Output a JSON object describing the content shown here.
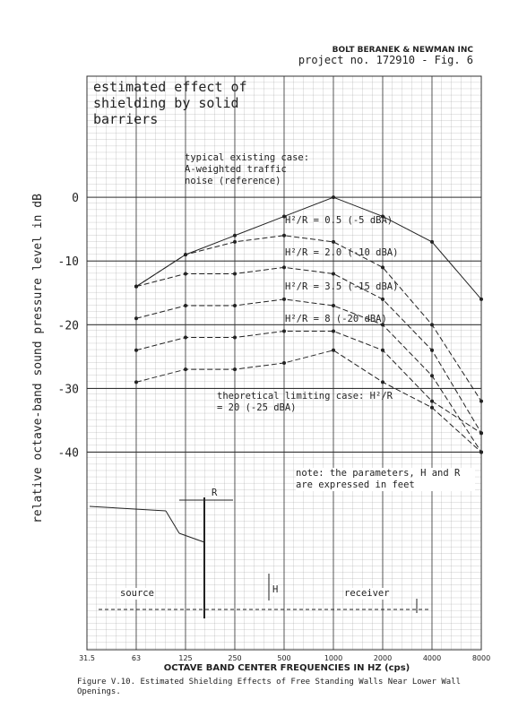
{
  "chart_data": {
    "type": "line",
    "header": "BOLT BERANEK & NEWMAN INC",
    "project": "project no. 172910 - Fig. 6",
    "title": "estimated effect of shielding by solid barriers",
    "xlabel": "OCTAVE BAND CENTER FREQUENCIES IN HZ (cps)",
    "ylabel": "relative octave-band sound pressure level in dB",
    "caption": "Figure V.10.  Estimated Shielding Effects of Free Standing Walls Near Lower Wall Openings.",
    "note": "note: the parameters, H and R are expressed in feet",
    "diagram_labels": [
      "R",
      "H",
      "source",
      "receiver"
    ],
    "categories": [
      "31.5",
      "63",
      "125",
      "250",
      "500",
      "1000",
      "2000",
      "4000",
      "8000"
    ],
    "ylim": [
      -71,
      19
    ],
    "yticks": [
      0,
      -10,
      -20,
      -30,
      -40
    ],
    "series": [
      {
        "name": "typical existing case: A-weighted traffic noise (reference)",
        "color": "#222222",
        "dash": false,
        "values": [
          null,
          -14,
          -9,
          -6,
          -3,
          0,
          -3,
          -7,
          -16
        ]
      },
      {
        "name": "H²/R = 0.5 (-5 dBA)",
        "color": "#222222",
        "dash": true,
        "values": [
          null,
          -14,
          -9,
          -7,
          -6,
          -7,
          -11,
          -20,
          -32
        ]
      },
      {
        "name": "H²/R = 2.0 (-10 dBA)",
        "color": "#222222",
        "dash": true,
        "values": [
          null,
          -14,
          -12,
          -12,
          -11,
          -12,
          -16,
          -24,
          -37
        ]
      },
      {
        "name": "H²/R = 3.5 (-15 dBA)",
        "color": "#222222",
        "dash": true,
        "values": [
          null,
          -19,
          -17,
          -17,
          -16,
          -17,
          -20,
          -28,
          -40
        ]
      },
      {
        "name": "H²/R = 8 (-20 dBA)",
        "color": "#222222",
        "dash": true,
        "values": [
          null,
          -24,
          -22,
          -22,
          -21,
          -21,
          -24,
          -32,
          -37
        ]
      },
      {
        "name": "theoretical limiting case: H²/R = 20 (-25 dBA)",
        "color": "#222222",
        "dash": true,
        "values": [
          null,
          -29,
          -27,
          -27,
          -26,
          -24,
          -29,
          -33,
          -40
        ]
      }
    ]
  }
}
